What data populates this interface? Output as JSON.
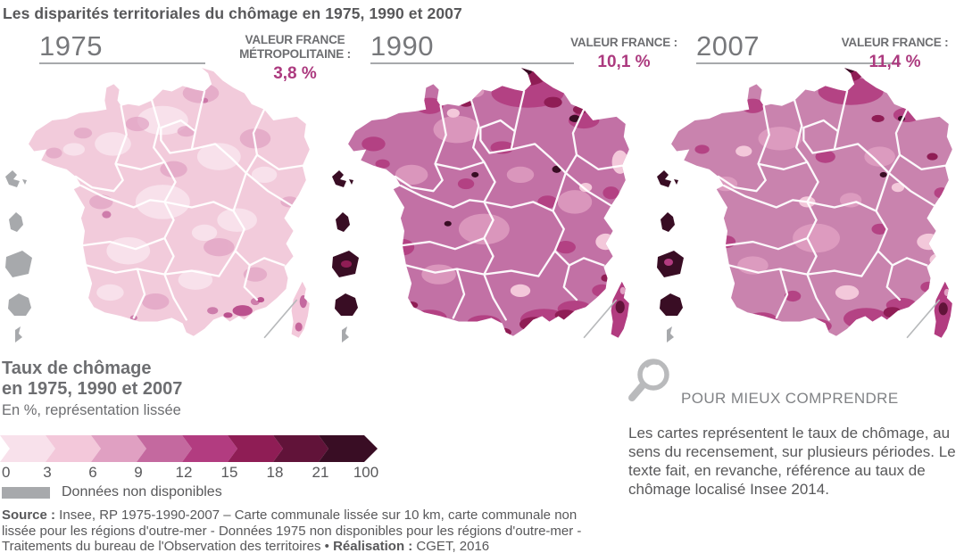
{
  "title": "Les disparités territoriales du chômage en 1975, 1990 et 2007",
  "panels": [
    {
      "year": "1975",
      "value_label": "VALEUR FRANCE MÉTROPOLITAINE :",
      "value": "3,8 %"
    },
    {
      "year": "1990",
      "value_label": "VALEUR FRANCE :",
      "value": "10,1 %"
    },
    {
      "year": "2007",
      "value_label": "VALEUR FRANCE :",
      "value": "11,4 %"
    }
  ],
  "legend": {
    "title_line1": "Taux de chômage",
    "title_line2": "en 1975, 1990 et 2007",
    "subtitle": "En %, représentation lissée",
    "ticks": [
      "0",
      "3",
      "6",
      "9",
      "12",
      "15",
      "18",
      "21",
      "100"
    ],
    "scale_colors": [
      "#f8e1eb",
      "#f3c8da",
      "#e0a0c2",
      "#c4699f",
      "#b23c80",
      "#8f1d55",
      "#611339",
      "#390d24"
    ],
    "no_data_label": "Données non disponibles"
  },
  "note": {
    "icon": "magnifier-icon",
    "heading": "POUR MIEUX COMPRENDRE",
    "body": "Les cartes représentent le taux de chômage, au sens du recensement, sur plusieurs périodes. Le texte fait, en revanche, référence au taux de chômage localisé Insee 2014."
  },
  "source": {
    "label_source": "Source :",
    "text_source": " Insee, RP 1975-1990-2007 –  Carte communale lissée sur 10 km, carte communale non lissée pour les régions d'outre-mer - Données 1975 non disponibles pour les régions d'outre-mer - Traitements du bureau de l'Observation des territoires • ",
    "label_realisation": "Réalisation :",
    "text_realisation": " CGET, 2016"
  },
  "colors": {
    "title_gray": "#58585a",
    "year_gray": "#77787b",
    "label_gray": "#6d6e71",
    "value_magenta": "#ac3a7f",
    "rule_gray": "#a7a9ac",
    "body_gray": "#58585a",
    "heading_gray": "#808285",
    "icon_gray": "#b9babc",
    "gray_nodata": "#a7a9ac",
    "map1975_base": "#f2cbdb",
    "map1990_base": "#c271a5",
    "map2007_base": "#c983ae"
  },
  "chart_data": {
    "type": "heatmap",
    "subtype": "choropleth-map-series",
    "title": "Les disparités territoriales du chômage en 1975, 1990 et 2007",
    "unit": "%",
    "variable": "Taux de chômage, représentation lissée",
    "maps": [
      {
        "year": 1975,
        "national_value": 3.8,
        "national_value_label": "VALEUR FRANCE MÉTROPOLITAINE :",
        "overseas_regions": "données non disponibles"
      },
      {
        "year": 1990,
        "national_value": 10.1,
        "national_value_label": "VALEUR FRANCE :",
        "overseas_regions": "taux très élevés (classe 21-100)"
      },
      {
        "year": 2007,
        "national_value": 11.4,
        "national_value_label": "VALEUR FRANCE :",
        "overseas_regions": "taux très élevés (classe 21-100)"
      }
    ],
    "scale_breaks": [
      0,
      3,
      6,
      9,
      12,
      15,
      18,
      21,
      100
    ],
    "scale_colors": [
      "#f8e1eb",
      "#f3c8da",
      "#e0a0c2",
      "#c4699f",
      "#b23c80",
      "#8f1d55",
      "#611339",
      "#390d24"
    ],
    "no_data_color": "#a7a9ac",
    "legend_position": "bottom-left"
  }
}
